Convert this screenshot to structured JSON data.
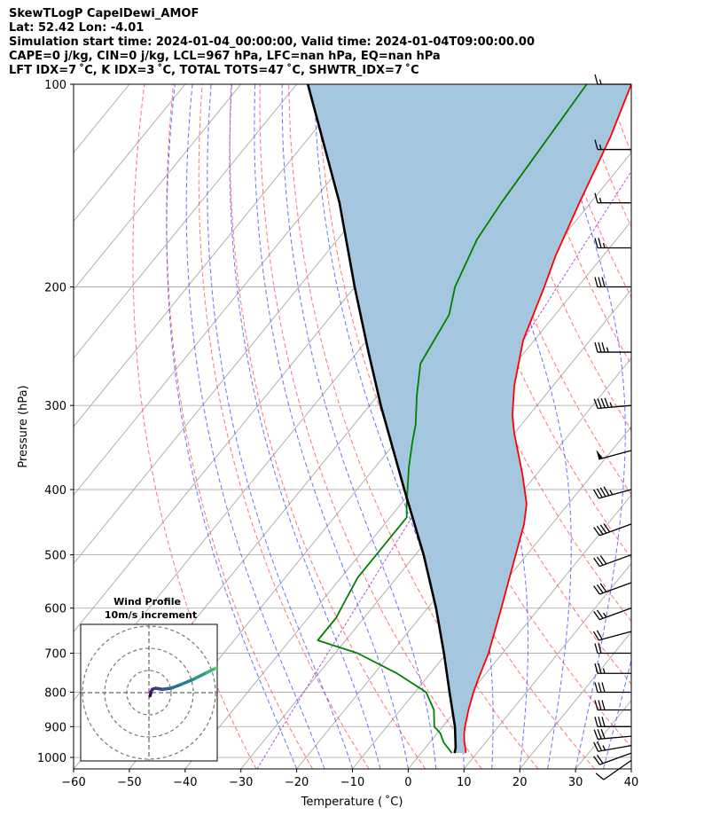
{
  "header": {
    "line1": "SkewTLogP CapelDewi_AMOF",
    "line2": "Lat: 52.42   Lon: -4.01",
    "line3": "Simulation start time: 2024-01-04_00:00:00, Valid time: 2024-01-04T09:00:00.00",
    "line4": "CAPE=0 j/kg, CIN=0 j/kg, LCL=967 hPa, LFC=nan hPa, EQ=nan hPa",
    "line5": "LFT IDX=7 ˚C, K IDX=3 ˚C, TOTAL TOTS=47 ˚C, SHWTR_IDX=7 ˚C"
  },
  "chart_data": {
    "type": "skewt",
    "xlabel": "Temperature ( ˚C)",
    "ylabel": "Pressure (hPa)",
    "xlim": [
      -60,
      40
    ],
    "ylim": [
      1040,
      100
    ],
    "x_ticks": [
      "−60",
      "−50",
      "−40",
      "−30",
      "−20",
      "−10",
      "0",
      "10",
      "20",
      "30",
      "40"
    ],
    "x_tick_values": [
      -60,
      -50,
      -40,
      -30,
      -20,
      -10,
      0,
      10,
      20,
      30,
      40
    ],
    "y_ticks": [
      "100",
      "200",
      "300",
      "400",
      "500",
      "600",
      "700",
      "800",
      "900",
      "1000"
    ],
    "y_tick_values": [
      100,
      200,
      300,
      400,
      500,
      600,
      700,
      800,
      900,
      1000
    ],
    "series": [
      {
        "name": "Temperature",
        "color": "#ff0000",
        "pressure": [
          985,
          970,
          950,
          920,
          900,
          850,
          800,
          760,
          700,
          600,
          500,
          450,
          420,
          380,
          330,
          310,
          280,
          240,
          200,
          180,
          150,
          120,
          100
        ],
        "values": [
          8,
          7.3,
          6.2,
          4.8,
          4,
          2.2,
          0.5,
          -0.7,
          -2.5,
          -6.8,
          -12,
          -15,
          -17.5,
          -22.5,
          -30,
          -33,
          -37,
          -42,
          -46,
          -48.5,
          -52,
          -56,
          -60
        ]
      },
      {
        "name": "Dewpoint",
        "color": "#008000",
        "pressure": [
          985,
          950,
          920,
          900,
          850,
          800,
          750,
          700,
          670,
          620,
          580,
          540,
          510,
          440,
          420,
          370,
          340,
          320,
          290,
          260,
          220,
          200,
          170,
          150,
          100
        ],
        "values": [
          5.5,
          2.5,
          0.5,
          -1.5,
          -4,
          -8,
          -16,
          -26,
          -35,
          -35,
          -36,
          -37,
          -37,
          -37,
          -39,
          -44,
          -47,
          -49,
          -53,
          -57,
          -59,
          -62,
          -65,
          -66,
          -68
        ]
      },
      {
        "name": "Parcel profile",
        "color": "#000000",
        "pressure": [
          985,
          967,
          900,
          800,
          700,
          600,
          500,
          400,
          300,
          250,
          200,
          150,
          100
        ],
        "values": [
          6,
          5.4,
          2.2,
          -3.8,
          -10.5,
          -18.5,
          -28.5,
          -41.5,
          -58,
          -68,
          -80,
          -95,
          -118
        ]
      }
    ],
    "wind_barbs": {
      "pressure": [
        1010,
        985,
        960,
        930,
        900,
        850,
        800,
        750,
        700,
        650,
        600,
        550,
        500,
        450,
        400,
        350,
        300,
        250,
        200,
        175,
        150,
        125,
        100
      ],
      "speed_kt": [
        12,
        20,
        25,
        28,
        30,
        30,
        30,
        25,
        20,
        20,
        25,
        30,
        30,
        40,
        45,
        50,
        45,
        35,
        30,
        25,
        15,
        15,
        15
      ],
      "direction_deg": [
        235,
        250,
        260,
        265,
        270,
        270,
        270,
        270,
        270,
        255,
        250,
        250,
        250,
        250,
        255,
        255,
        265,
        270,
        270,
        270,
        270,
        270,
        270
      ]
    },
    "hodograph": {
      "title": "Wind Profile",
      "subtitle": "10m/s increment",
      "u": [
        0.5,
        1,
        1.5,
        3,
        6,
        10,
        14,
        20,
        26,
        30,
        33
      ],
      "v": [
        -1.5,
        0.5,
        1.5,
        2,
        1.5,
        2,
        3.5,
        6,
        9,
        11,
        12
      ]
    }
  }
}
